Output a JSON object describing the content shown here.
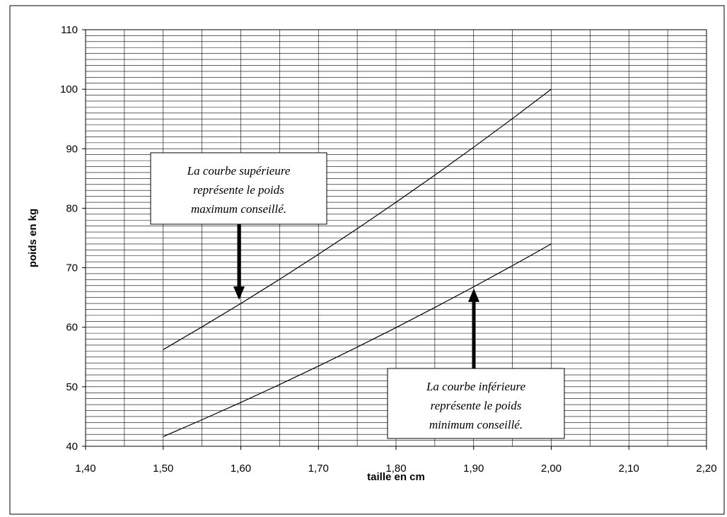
{
  "chart_data": {
    "type": "line",
    "title": "",
    "xlabel": "taille en cm",
    "ylabel": "poids en kg",
    "xlim": [
      1.4,
      2.2
    ],
    "ylim": [
      40,
      110
    ],
    "x_ticks": [
      "1,40",
      "1,50",
      "1,60",
      "1,70",
      "1,80",
      "1,90",
      "2,00",
      "2,10",
      "2,20"
    ],
    "y_ticks": [
      "40",
      "50",
      "60",
      "70",
      "80",
      "90",
      "100",
      "110"
    ],
    "grid": true,
    "legend": "none",
    "series": [
      {
        "x": [
          1.5,
          1.55,
          1.6,
          1.65,
          1.7,
          1.75,
          1.8,
          1.85,
          1.9,
          1.95,
          2.0
        ],
        "values": [
          56.25,
          60.06,
          64.0,
          68.06,
          72.25,
          76.56,
          81.0,
          85.56,
          90.25,
          95.06,
          100.0
        ]
      },
      {
        "x": [
          1.5,
          1.55,
          1.6,
          1.65,
          1.7,
          1.75,
          1.8,
          1.85,
          1.9,
          1.95,
          2.0
        ],
        "values": [
          41.63,
          44.46,
          47.36,
          50.38,
          53.47,
          56.66,
          59.94,
          63.33,
          66.79,
          70.35,
          74.0
        ]
      }
    ],
    "annotations": [
      {
        "lines": [
          "La courbe supérieure",
          "représente le poids",
          "maximum conseillé."
        ],
        "arrow_to": [
          1.6,
          64
        ]
      },
      {
        "lines": [
          "La courbe inférieure",
          "représente le poids",
          "minimum conseillé."
        ],
        "arrow_to": [
          1.9,
          67
        ]
      }
    ]
  }
}
